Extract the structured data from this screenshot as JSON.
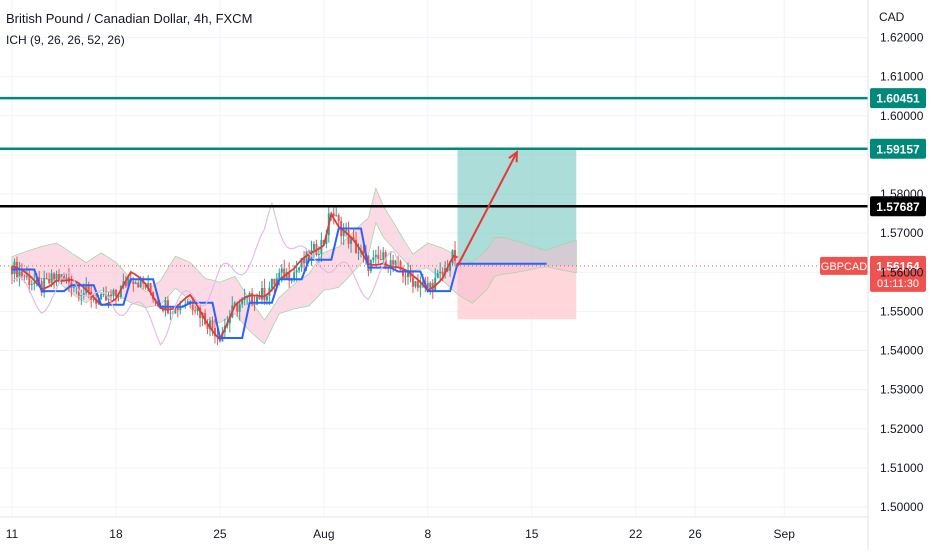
{
  "header": {
    "title": "British Pound / Canadian Dollar, 4h, FXCM",
    "indicator": "ICH (9, 26, 26, 52, 26)"
  },
  "colors": {
    "background": "#ffffff",
    "grid": "#f0f3fa",
    "axis_text": "#131722",
    "bull_candle": "#26a69a",
    "bear_candle": "#ef5350",
    "cloud_bull": "#a5d6a7",
    "cloud_bear": "#f8bbd0",
    "tenkan": "#e53935",
    "kijun": "#2962ff",
    "chikou": "#e1bee7",
    "level_green": "#00897b",
    "level_black": "#000000",
    "target_zone": "#80cbc4",
    "stop_zone": "#ffcdd2",
    "arrow": "#e53935",
    "symbol_badge": "#ef5350"
  },
  "chart_data": {
    "type": "candlestick",
    "symbol": "GBPCAD",
    "timeframe": "4h",
    "y_axis": {
      "unit_label": "CAD",
      "range": [
        1.5,
        1.625
      ],
      "ticks": [
        "1.62000",
        "1.61000",
        "1.60000",
        "1.59000",
        "1.58000",
        "1.57000",
        "1.56000",
        "1.55000",
        "1.54000",
        "1.53000",
        "1.52000",
        "1.51000",
        "1.50000"
      ]
    },
    "x_axis": {
      "range_days": [
        0,
        41
      ],
      "ticks": [
        {
          "label": "11",
          "day": 0
        },
        {
          "label": "18",
          "day": 7
        },
        {
          "label": "25",
          "day": 14
        },
        {
          "label": "Aug",
          "day": 21
        },
        {
          "label": "8",
          "day": 28
        },
        {
          "label": "15",
          "day": 35
        },
        {
          "label": "22",
          "day": 42
        },
        {
          "label": "26",
          "day": 46
        },
        {
          "label": "Sep",
          "day": 52
        }
      ]
    },
    "close_path": [
      [
        0,
        1.5615
      ],
      [
        1,
        1.5585
      ],
      [
        2,
        1.556
      ],
      [
        3,
        1.559
      ],
      [
        4,
        1.5575
      ],
      [
        5,
        1.5545
      ],
      [
        6,
        1.5525
      ],
      [
        7,
        1.554
      ],
      [
        8,
        1.559
      ],
      [
        9,
        1.5565
      ],
      [
        10,
        1.552
      ],
      [
        11,
        1.551
      ],
      [
        12,
        1.553
      ],
      [
        13,
        1.548
      ],
      [
        14,
        1.544
      ],
      [
        15,
        1.551
      ],
      [
        16,
        1.553
      ],
      [
        17,
        1.5545
      ],
      [
        18,
        1.559
      ],
      [
        19,
        1.56
      ],
      [
        20,
        1.564
      ],
      [
        21,
        1.568
      ],
      [
        21.5,
        1.576
      ],
      [
        22,
        1.572
      ],
      [
        23,
        1.567
      ],
      [
        24,
        1.562
      ],
      [
        25,
        1.5635
      ],
      [
        26,
        1.561
      ],
      [
        27,
        1.558
      ],
      [
        28,
        1.556
      ],
      [
        29,
        1.5595
      ],
      [
        29.7,
        1.564
      ],
      [
        30,
        1.563
      ]
    ],
    "horizontal_levels": [
      {
        "label": "1.60451",
        "value": 1.60451,
        "color": "green"
      },
      {
        "label": "1.59157",
        "value": 1.59157,
        "color": "green"
      },
      {
        "label": "1.57687",
        "value": 1.57687,
        "color": "black"
      }
    ],
    "current_price": {
      "symbol": "GBPCAD",
      "price": "1.56164",
      "countdown": "01:11:30",
      "value": 1.56164
    },
    "position": {
      "entry": 1.56164,
      "target": 1.59157,
      "stop": 1.548,
      "start_day": 30,
      "end_day": 38
    },
    "projection_arrow": {
      "from": [
        30,
        1.5616
      ],
      "to": [
        34,
        1.5907
      ]
    }
  }
}
